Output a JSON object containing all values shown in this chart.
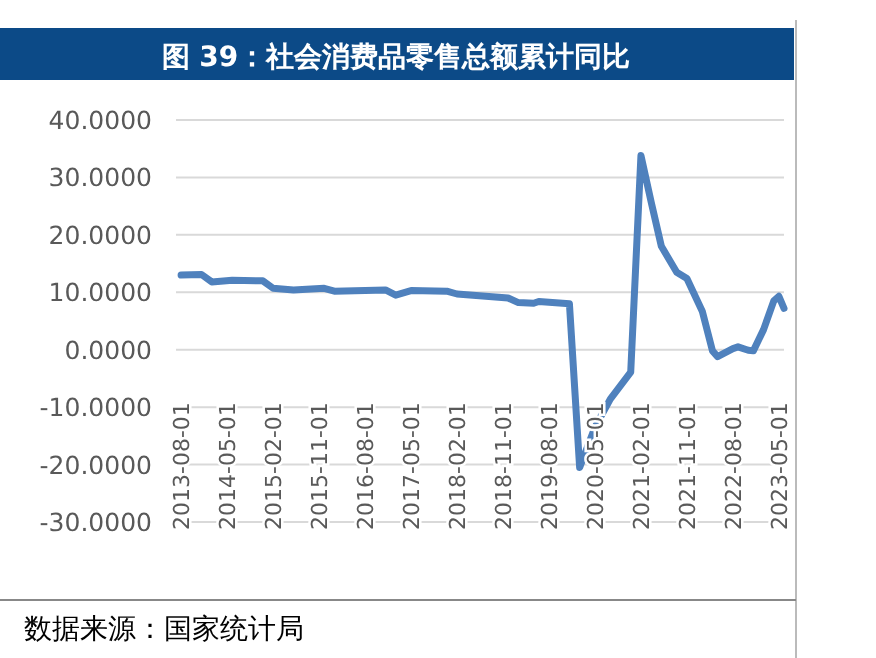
{
  "chart_data": {
    "type": "line",
    "title": "图 39：社会消费品零售总额累计同比",
    "annotations": [
      "数据来源：国家统计局"
    ],
    "x": [
      "2013-08",
      "2013-12",
      "2014-02",
      "2014-06",
      "2014-12",
      "2015-02",
      "2015-06",
      "2015-12",
      "2016-02",
      "2016-12",
      "2017-02",
      "2017-05",
      "2017-12",
      "2018-02",
      "2018-12",
      "2019-02",
      "2019-05",
      "2019-06",
      "2019-12",
      "2020-02",
      "2020-05",
      "2020-08",
      "2020-12",
      "2021-02",
      "2021-04",
      "2021-06",
      "2021-09",
      "2021-11",
      "2022-02",
      "2022-04",
      "2022-05",
      "2022-08",
      "2022-09",
      "2022-11",
      "2022-12",
      "2023-02",
      "2023-04",
      "2023-05",
      "2023-06"
    ],
    "series": [
      {
        "color": "#4f81bd",
        "values": [
          13.0,
          13.1,
          11.8,
          12.1,
          12.0,
          10.7,
          10.4,
          10.7,
          10.2,
          10.4,
          9.5,
          10.3,
          10.2,
          9.7,
          9.0,
          8.2,
          8.1,
          8.4,
          8.0,
          -20.5,
          -13.5,
          -8.6,
          -3.9,
          33.8,
          25.7,
          18.0,
          13.5,
          12.4,
          6.7,
          -0.2,
          -1.2,
          0.2,
          0.5,
          -0.1,
          -0.2,
          3.5,
          8.5,
          9.3,
          7.2
        ]
      }
    ],
    "xlim": [
      "2013-07",
      "2023-06"
    ],
    "xticks": [
      {
        "value": "2013-08",
        "label": "2013-08-01"
      },
      {
        "value": "2014-05",
        "label": "2014-05-01"
      },
      {
        "value": "2015-02",
        "label": "2015-02-01"
      },
      {
        "value": "2015-11",
        "label": "2015-11-01"
      },
      {
        "value": "2016-08",
        "label": "2016-08-01"
      },
      {
        "value": "2017-05",
        "label": "2017-05-01"
      },
      {
        "value": "2018-02",
        "label": "2018-02-01"
      },
      {
        "value": "2018-11",
        "label": "2018-11-01"
      },
      {
        "value": "2019-08",
        "label": "2019-08-01"
      },
      {
        "value": "2020-05",
        "label": "2020-05-01"
      },
      {
        "value": "2021-02",
        "label": "2021-02-01"
      },
      {
        "value": "2021-11",
        "label": "2021-11-01"
      },
      {
        "value": "2022-08",
        "label": "2022-08-01"
      },
      {
        "value": "2023-05",
        "label": "2023-05-01"
      }
    ],
    "ylim": [
      -30,
      40
    ],
    "yticks": [
      {
        "value": -30,
        "label": "-30.0000"
      },
      {
        "value": -20,
        "label": "-20.0000"
      },
      {
        "value": -10,
        "label": "-10.0000"
      },
      {
        "value": 0,
        "label": "0.0000"
      },
      {
        "value": 10,
        "label": "10.0000"
      },
      {
        "value": 20,
        "label": "20.0000"
      },
      {
        "value": 30,
        "label": "30.0000"
      },
      {
        "value": 40,
        "label": "40.0000"
      }
    ],
    "grid": "y",
    "marker": "none",
    "line_style": "solid"
  }
}
